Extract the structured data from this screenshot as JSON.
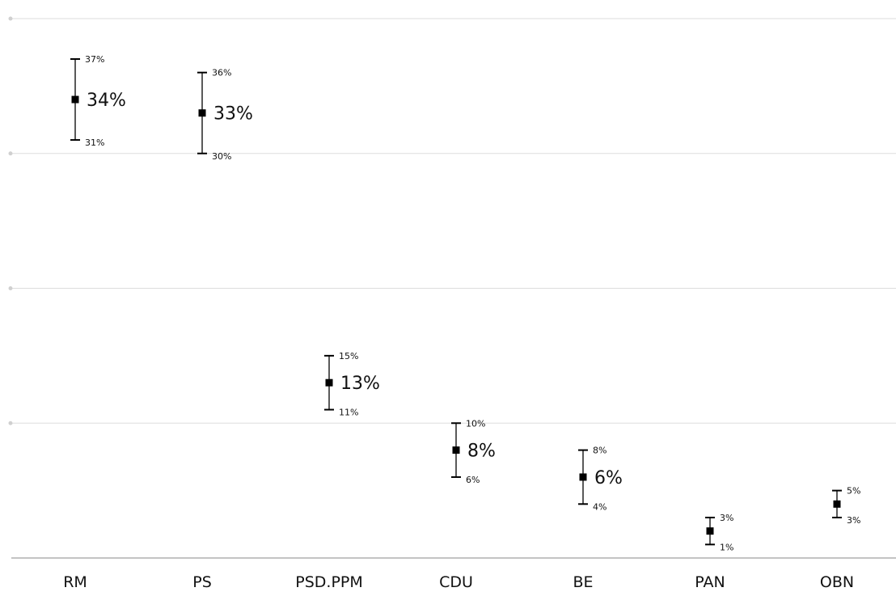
{
  "chart_data": {
    "type": "scatter",
    "categories": [
      "RM",
      "PS",
      "PSD.PPM",
      "CDU",
      "BE",
      "PAN",
      "OBN"
    ],
    "series": [
      {
        "values": [
          34,
          33,
          13,
          8,
          6,
          2,
          4
        ],
        "lower": [
          31,
          30,
          11,
          6,
          4,
          1,
          3
        ],
        "upper": [
          37,
          36,
          15,
          10,
          8,
          3,
          5
        ],
        "value_labels": [
          "34%",
          "33%",
          "13%",
          "8%",
          "6%",
          "",
          ""
        ],
        "lower_labels": [
          "31%",
          "30%",
          "11%",
          "6%",
          "4%",
          "1%",
          "3%"
        ],
        "upper_labels": [
          "37%",
          "36%",
          "15%",
          "10%",
          "8%",
          "3%",
          "5%"
        ]
      }
    ],
    "ylim": [
      0,
      40
    ],
    "grid": true,
    "title": "",
    "xlabel": "",
    "ylabel": "",
    "colors": {
      "marker": "#000000",
      "grid": "#dddddd",
      "axis": "#888888"
    }
  }
}
